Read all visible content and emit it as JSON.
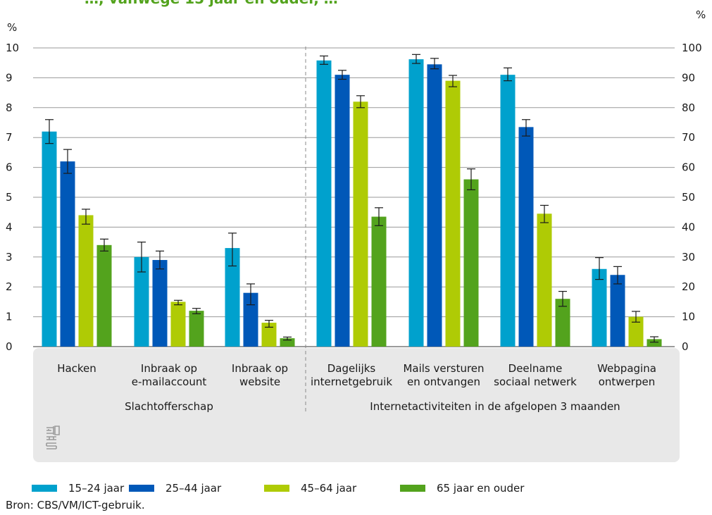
{
  "page": {
    "title": "…, vanwege 15 jaar en ouder, …"
  },
  "chart_data": {
    "type": "bar",
    "left_axis": {
      "unit": "%",
      "ylim": [
        0,
        10
      ],
      "ticks": [
        "0",
        "1",
        "2",
        "3",
        "4",
        "5",
        "6",
        "7",
        "8",
        "9",
        "10"
      ]
    },
    "right_axis": {
      "unit": "%",
      "ylim": [
        0,
        100
      ],
      "ticks": [
        "0",
        "10",
        "20",
        "30",
        "40",
        "50",
        "60",
        "70",
        "80",
        "90",
        "100"
      ]
    },
    "grid": true,
    "legend_position": "bottom",
    "groups": [
      {
        "name": "Slachtofferschap",
        "axis": "left",
        "categories": [
          "Hacken",
          "Inbraak op\ne-mailaccount",
          "Inbraak op\nwebsite"
        ]
      },
      {
        "name": "Internetactiviteiten in de afgelopen 3 maanden",
        "axis": "right",
        "categories": [
          "Dagelijks\ninternetgebruik",
          "Mails versturen\nen ontvangen",
          "Deelname\nsociaal netwerk",
          "Webpagina\nontwerpen"
        ]
      }
    ],
    "series": [
      {
        "name": "15–24 jaar",
        "color": "#00a1cd",
        "values": [
          7.2,
          3.0,
          3.3,
          95.8,
          96.2,
          91.0,
          26.0
        ],
        "error_low": [
          6.8,
          2.5,
          2.7,
          94.5,
          94.8,
          89.0,
          22.5
        ],
        "error_high": [
          7.6,
          3.5,
          3.8,
          97.3,
          97.8,
          93.3,
          29.8
        ]
      },
      {
        "name": "25–44 jaar",
        "color": "#0058b8",
        "values": [
          6.2,
          2.9,
          1.8,
          91.0,
          94.5,
          73.5,
          24.0
        ],
        "error_low": [
          5.8,
          2.6,
          1.4,
          89.5,
          93.0,
          70.5,
          21.0
        ],
        "error_high": [
          6.6,
          3.2,
          2.1,
          92.5,
          96.5,
          76.0,
          26.8
        ]
      },
      {
        "name": "45–64 jaar",
        "color": "#afcb05",
        "values": [
          4.4,
          1.5,
          0.8,
          82.0,
          89.0,
          44.5,
          10.0
        ],
        "error_low": [
          4.1,
          1.4,
          0.65,
          80.0,
          87.0,
          41.5,
          8.2
        ],
        "error_high": [
          4.6,
          1.55,
          0.88,
          84.0,
          90.8,
          47.3,
          11.8
        ]
      },
      {
        "name": "65 jaar en ouder",
        "color": "#53a31d",
        "values": [
          3.4,
          1.2,
          0.28,
          43.5,
          56.0,
          16.0,
          2.5
        ],
        "error_low": [
          3.2,
          1.1,
          0.22,
          40.5,
          52.5,
          13.5,
          1.5
        ],
        "error_high": [
          3.6,
          1.28,
          0.32,
          46.5,
          59.5,
          18.5,
          3.3
        ]
      }
    ]
  },
  "logo": {
    "name": "cbs-logo",
    "text": "cbs"
  },
  "legend_labels": [
    "15–24 jaar",
    "25–44 jaar",
    "45–64 jaar",
    "65 jaar en ouder"
  ],
  "source": "Bron: CBS/VM/ICT-gebruik."
}
